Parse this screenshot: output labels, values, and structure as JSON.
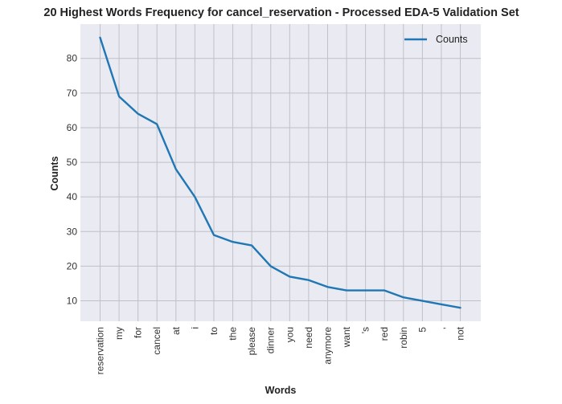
{
  "chart_data": {
    "type": "line",
    "title": "20 Highest Words Frequency for cancel_reservation - Processed EDA-5 Validation Set",
    "xlabel": "Words",
    "ylabel": "Counts",
    "categories": [
      "reservation",
      "my",
      "for",
      "cancel",
      "at",
      "i",
      "to",
      "the",
      "please",
      "dinner",
      "you",
      "need",
      "anymore",
      "want",
      "'s",
      "red",
      "robin",
      "5",
      ",",
      "not"
    ],
    "series": [
      {
        "name": "Counts",
        "values": [
          86,
          69,
          64,
          61,
          48,
          40,
          29,
          27,
          26,
          20,
          17,
          16,
          14,
          13,
          13,
          13,
          11,
          10,
          9,
          8
        ],
        "color": "#1f77b4"
      }
    ],
    "yticks": [
      10,
      20,
      30,
      40,
      50,
      60,
      70,
      80
    ],
    "ylim": [
      4.1,
      89.9
    ],
    "grid": true,
    "legend_position": "top-right",
    "plot_background": "#eaeaf2",
    "grid_color": "#c0c0c8"
  }
}
